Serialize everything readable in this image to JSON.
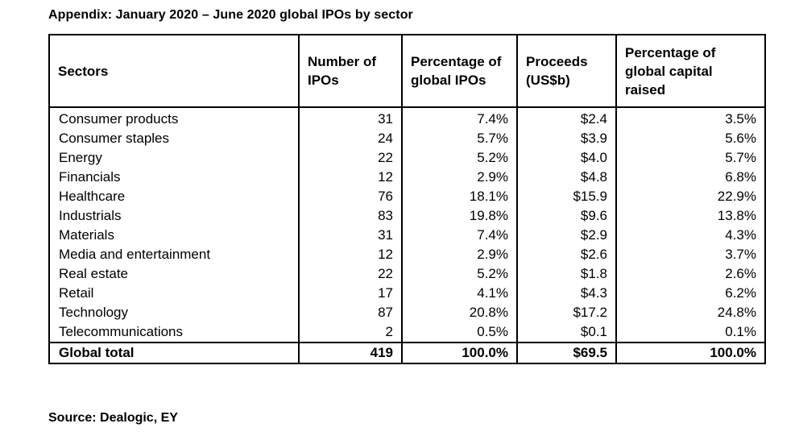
{
  "title": "Appendix: January 2020 – June 2020 global IPOs by sector",
  "table": {
    "headers": [
      "Sectors",
      "Number of IPOs",
      "Percentage of global IPOs",
      "Proceeds (US$b)",
      "Percentage of global capital raised"
    ],
    "rows": [
      [
        "Consumer products",
        "31",
        "7.4%",
        "$2.4",
        "3.5%"
      ],
      [
        "Consumer staples",
        "24",
        "5.7%",
        "$3.9",
        "5.6%"
      ],
      [
        "Energy",
        "22",
        "5.2%",
        "$4.0",
        "5.7%"
      ],
      [
        "Financials",
        "12",
        "2.9%",
        "$4.8",
        "6.8%"
      ],
      [
        "Healthcare",
        "76",
        "18.1%",
        "$15.9",
        "22.9%"
      ],
      [
        "Industrials",
        "83",
        "19.8%",
        "$9.6",
        "13.8%"
      ],
      [
        "Materials",
        "31",
        "7.4%",
        "$2.9",
        "4.3%"
      ],
      [
        "Media and entertainment",
        "12",
        "2.9%",
        "$2.6",
        "3.7%"
      ],
      [
        "Real estate",
        "22",
        "5.2%",
        "$1.8",
        "2.6%"
      ],
      [
        "Retail",
        "17",
        "4.1%",
        "$4.3",
        "6.2%"
      ],
      [
        "Technology",
        "87",
        "20.8%",
        "$17.2",
        "24.8%"
      ],
      [
        "Telecommunications",
        "2",
        "0.5%",
        "$0.1",
        "0.1%"
      ]
    ],
    "total": [
      "Global total",
      "419",
      "100.0%",
      "$69.5",
      "100.0%"
    ]
  },
  "source": "Source: Dealogic, EY"
}
